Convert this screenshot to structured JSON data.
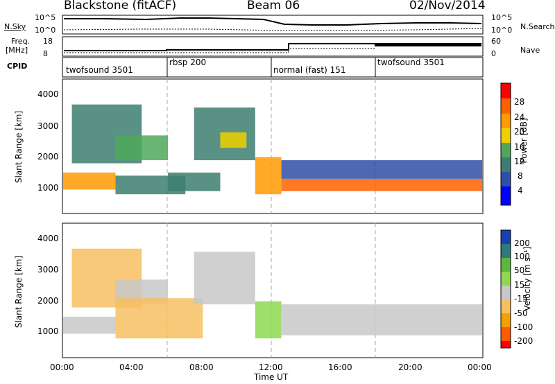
{
  "header": {
    "radar_title": "Blackstone (fitACF)",
    "beam": "Beam 06",
    "date": "02/Nov/2014"
  },
  "noise_panel": {
    "left_label": "N.Sky",
    "right_label": "N.Search",
    "left_ticks": [
      "10^5",
      "10^0"
    ],
    "right_ticks": [
      "10^5",
      "10^0"
    ]
  },
  "freq_panel": {
    "left_label_1": "Freq.",
    "left_label_2": "[MHz]",
    "right_label": "Nave",
    "left_ticks": [
      "18",
      "8"
    ],
    "right_ticks": [
      "60",
      "0"
    ]
  },
  "cpid_panel": {
    "label": "CPID",
    "modes": [
      "twofsound 3501",
      "rbsp 200",
      "normal (fast) 151",
      "twofsound 3501"
    ]
  },
  "power_panel": {
    "ylabel": "Slant Range [km]",
    "yticks": [
      "1000",
      "2000",
      "3000",
      "4000"
    ],
    "colorbar_label": "Power [dB]",
    "colorbar_ticks": [
      "4",
      "8",
      "12",
      "16",
      "20",
      "24",
      "28"
    ],
    "colors": [
      "#0000ff",
      "#2e4fa8",
      "#3d7e70",
      "#4fa85a",
      "#f0d000",
      "#ff9a00",
      "#ff6000",
      "#ff0000"
    ]
  },
  "velocity_panel": {
    "ylabel": "Slant Range [km]",
    "yticks": [
      "1000",
      "2000",
      "3000",
      "4000"
    ],
    "colorbar_label": "Velocity [m s⁻¹]",
    "colorbar_ticks": [
      "200",
      "100",
      "50",
      "15",
      "-15",
      "-50",
      "-100",
      "-200"
    ],
    "colors": [
      "#1a3fb0",
      "#2d7a80",
      "#5db83a",
      "#8fd850",
      "#c8c8c8",
      "#f6c060",
      "#f4a000",
      "#ff5a00",
      "#ff0000"
    ]
  },
  "x_axis": {
    "label": "Time UT",
    "ticks": [
      "00:00",
      "04:00",
      "08:00",
      "12:00",
      "16:00",
      "20:00",
      "00:00"
    ]
  },
  "chart_data": [
    {
      "type": "heatmap",
      "title": "Power",
      "xlabel": "Time UT",
      "ylabel": "Slant Range [km]",
      "xlim": [
        0,
        24
      ],
      "ylim": [
        200,
        4500
      ],
      "colorbar": {
        "label": "Power [dB]",
        "range": [
          0,
          30
        ]
      },
      "bands": [
        {
          "t0": 0.0,
          "t1": 3.0,
          "r0": 950,
          "r1": 1500,
          "value": 22
        },
        {
          "t0": 0.5,
          "t1": 4.5,
          "r0": 1800,
          "r1": 3700,
          "value": 10
        },
        {
          "t0": 3.0,
          "t1": 6.0,
          "r0": 1900,
          "r1": 2700,
          "value": 13
        },
        {
          "t0": 3.0,
          "t1": 7.0,
          "r0": 800,
          "r1": 1400,
          "value": 9
        },
        {
          "t0": 6.0,
          "t1": 9.0,
          "r0": 900,
          "r1": 1500,
          "value": 11
        },
        {
          "t0": 7.5,
          "t1": 11.0,
          "r0": 1900,
          "r1": 3600,
          "value": 10
        },
        {
          "t0": 9.0,
          "t1": 10.5,
          "r0": 2300,
          "r1": 2800,
          "value": 16
        },
        {
          "t0": 11.0,
          "t1": 12.5,
          "r0": 800,
          "r1": 2000,
          "value": 20
        },
        {
          "t0": 12.5,
          "t1": 24.0,
          "r0": 900,
          "r1": 1300,
          "value": 26
        },
        {
          "t0": 12.5,
          "t1": 24.0,
          "r0": 1300,
          "r1": 1900,
          "value": 7
        }
      ]
    },
    {
      "type": "heatmap",
      "title": "Velocity",
      "xlabel": "Time UT",
      "ylabel": "Slant Range [km]",
      "xlim": [
        0,
        24
      ],
      "ylim": [
        200,
        4500
      ],
      "colorbar": {
        "label": "Velocity [m s⁻¹]",
        "range": [
          -200,
          200
        ]
      },
      "bands": [
        {
          "t0": 0.0,
          "t1": 3.0,
          "r0": 950,
          "r1": 1500,
          "value": 0
        },
        {
          "t0": 0.5,
          "t1": 4.5,
          "r0": 1800,
          "r1": 3700,
          "value": -30
        },
        {
          "t0": 3.0,
          "t1": 6.0,
          "r0": 1900,
          "r1": 2700,
          "value": 0
        },
        {
          "t0": 3.0,
          "t1": 8.0,
          "r0": 800,
          "r1": 2100,
          "value": -50
        },
        {
          "t0": 7.5,
          "t1": 11.0,
          "r0": 1900,
          "r1": 3600,
          "value": 0
        },
        {
          "t0": 11.0,
          "t1": 12.5,
          "r0": 800,
          "r1": 2000,
          "value": 40
        },
        {
          "t0": 12.5,
          "t1": 24.0,
          "r0": 900,
          "r1": 1900,
          "value": 0
        }
      ]
    }
  ]
}
